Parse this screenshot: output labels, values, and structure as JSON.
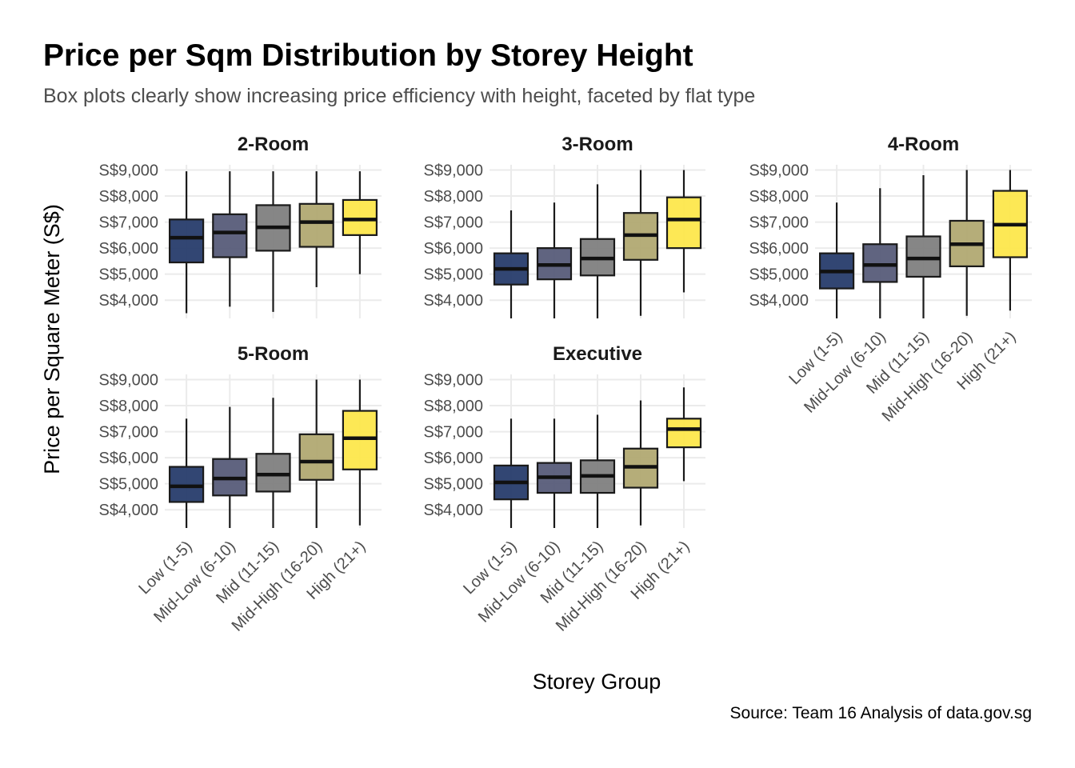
{
  "chart_data": {
    "type": "box",
    "title": "Price per Sqm Distribution by Storey Height",
    "subtitle": "Box plots clearly show increasing price efficiency with height, faceted by flat type",
    "caption": "Source: Team 16 Analysis of data.gov.sg",
    "xlabel": "Storey Group",
    "ylabel": "Price per Square Meter (S$)",
    "categories": [
      "Low (1-5)",
      "Mid-Low (6-10)",
      "Mid (11-15)",
      "Mid-High (16-20)",
      "High (21+)"
    ],
    "category_colors": [
      "#273C6C",
      "#575C79",
      "#7F7F7F",
      "#B1A972",
      "#FDE74C"
    ],
    "y_ticks": [
      4000,
      5000,
      6000,
      7000,
      8000,
      9000
    ],
    "y_tick_labels": [
      "S$4,000",
      "S$5,000",
      "S$6,000",
      "S$7,000",
      "S$8,000",
      "S$9,000"
    ],
    "ylim": [
      3300,
      9200
    ],
    "grid": true,
    "legend": "none",
    "facets": [
      {
        "name": "2-Room",
        "boxes": [
          {
            "min": 3500,
            "q1": 5450,
            "median": 6400,
            "q3": 7100,
            "max": 8950
          },
          {
            "min": 3750,
            "q1": 5650,
            "median": 6600,
            "q3": 7300,
            "max": 8950
          },
          {
            "min": 3550,
            "q1": 5900,
            "median": 6800,
            "q3": 7650,
            "max": 8950
          },
          {
            "min": 4500,
            "q1": 6050,
            "median": 7000,
            "q3": 7700,
            "max": 8950
          },
          {
            "min": 5000,
            "q1": 6500,
            "median": 7100,
            "q3": 7850,
            "max": 8950
          }
        ]
      },
      {
        "name": "3-Room",
        "boxes": [
          {
            "min": 3300,
            "q1": 4600,
            "median": 5200,
            "q3": 5800,
            "max": 7450
          },
          {
            "min": 3300,
            "q1": 4800,
            "median": 5350,
            "q3": 6000,
            "max": 7750
          },
          {
            "min": 3300,
            "q1": 4950,
            "median": 5600,
            "q3": 6350,
            "max": 8450
          },
          {
            "min": 3400,
            "q1": 5550,
            "median": 6500,
            "q3": 7350,
            "max": 9000
          },
          {
            "min": 4300,
            "q1": 6000,
            "median": 7100,
            "q3": 7950,
            "max": 9000
          }
        ]
      },
      {
        "name": "4-Room",
        "boxes": [
          {
            "min": 3300,
            "q1": 4450,
            "median": 5100,
            "q3": 5800,
            "max": 7750
          },
          {
            "min": 3300,
            "q1": 4700,
            "median": 5350,
            "q3": 6150,
            "max": 8300
          },
          {
            "min": 3300,
            "q1": 4900,
            "median": 5600,
            "q3": 6450,
            "max": 8800
          },
          {
            "min": 3400,
            "q1": 5300,
            "median": 6150,
            "q3": 7050,
            "max": 9000
          },
          {
            "min": 3600,
            "q1": 5650,
            "median": 6900,
            "q3": 8200,
            "max": 9000
          }
        ]
      },
      {
        "name": "5-Room",
        "boxes": [
          {
            "min": 3300,
            "q1": 4300,
            "median": 4900,
            "q3": 5650,
            "max": 7500
          },
          {
            "min": 3300,
            "q1": 4550,
            "median": 5200,
            "q3": 5950,
            "max": 7950
          },
          {
            "min": 3300,
            "q1": 4700,
            "median": 5350,
            "q3": 6150,
            "max": 8300
          },
          {
            "min": 3300,
            "q1": 5150,
            "median": 5850,
            "q3": 6900,
            "max": 9000
          },
          {
            "min": 3400,
            "q1": 5550,
            "median": 6750,
            "q3": 7800,
            "max": 9000
          }
        ]
      },
      {
        "name": "Executive",
        "boxes": [
          {
            "min": 3300,
            "q1": 4400,
            "median": 5050,
            "q3": 5700,
            "max": 7500
          },
          {
            "min": 3300,
            "q1": 4650,
            "median": 5250,
            "q3": 5800,
            "max": 7500
          },
          {
            "min": 3300,
            "q1": 4650,
            "median": 5300,
            "q3": 5900,
            "max": 7650
          },
          {
            "min": 3400,
            "q1": 4850,
            "median": 5650,
            "q3": 6350,
            "max": 8200
          },
          {
            "min": 5100,
            "q1": 6400,
            "median": 7100,
            "q3": 7500,
            "max": 8700
          }
        ]
      }
    ]
  }
}
